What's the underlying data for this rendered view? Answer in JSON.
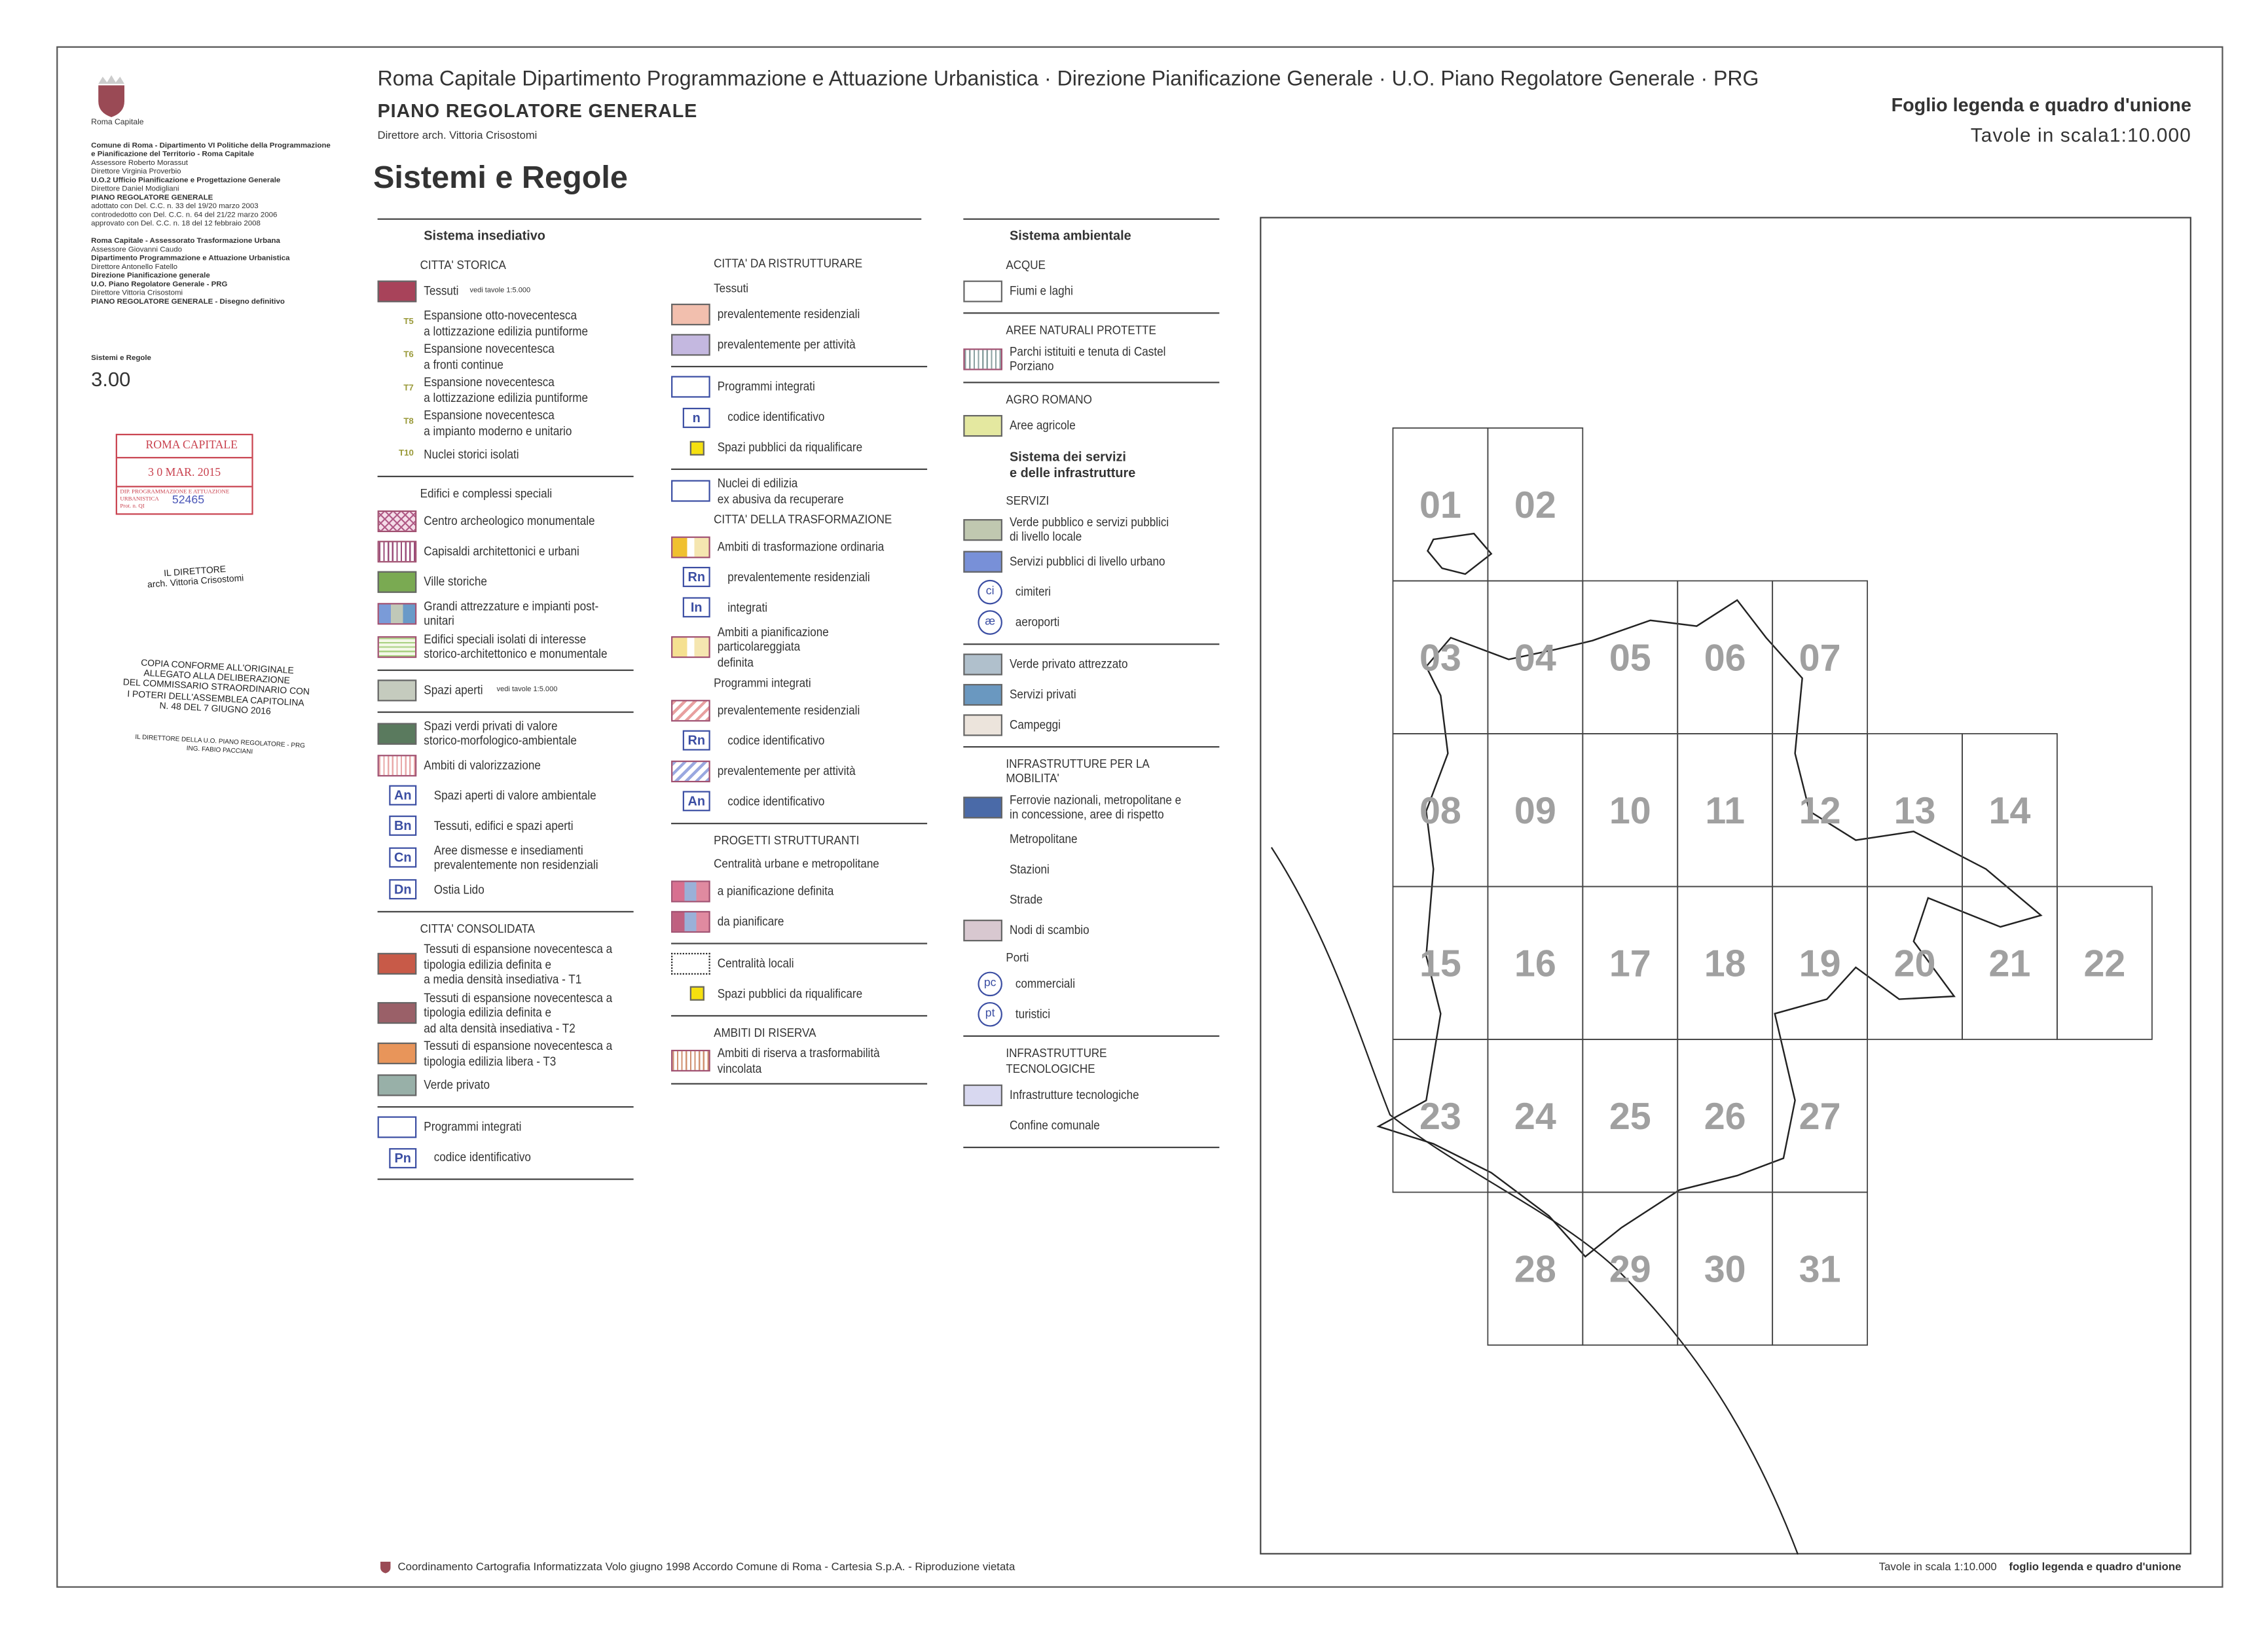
{
  "sidebar": {
    "logo_text": "SPQR",
    "org": "Roma Capitale",
    "lines": [
      {
        "b": true,
        "t": "Comune di Roma - Dipartimento VI Politiche della Programmazione"
      },
      {
        "b": true,
        "t": "e Pianificazione del Territorio - Roma Capitale"
      },
      {
        "b": false,
        "t": "Assessore Roberto Morassut"
      },
      {
        "b": false,
        "t": "Direttore Virginia Proverbio"
      },
      {
        "b": true,
        "t": "U.O.2 Ufficio Pianificazione e Progettazione Generale"
      },
      {
        "b": false,
        "t": "Direttore Daniel Modigliani"
      },
      {
        "b": true,
        "t": "PIANO REGOLATORE GENERALE"
      },
      {
        "b": false,
        "t": "adottato con Del. C.C. n. 33 del 19/20 marzo 2003"
      },
      {
        "b": false,
        "t": "controdedotto con Del. C.C. n. 64 del 21/22 marzo 2006"
      },
      {
        "b": false,
        "t": "approvato con Del. C.C. n. 18 del 12 febbraio 2008"
      },
      {
        "b": false,
        "t": ""
      },
      {
        "b": true,
        "t": "Roma Capitale - Assessorato Trasformazione Urbana"
      },
      {
        "b": false,
        "t": "Assessore  Giovanni Caudo"
      },
      {
        "b": true,
        "t": "Dipartimento Programmazione e Attuazione Urbanistica"
      },
      {
        "b": false,
        "t": "Direttore Antonello Fatello"
      },
      {
        "b": true,
        "t": "Direzione Pianificazione generale"
      },
      {
        "b": true,
        "t": "U.O. Piano Regolatore Generale - PRG"
      },
      {
        "b": false,
        "t": "Direttore Vittoria Crisostomi"
      },
      {
        "b": true,
        "t": "PIANO REGOLATORE GENERALE - Disegno definitivo"
      }
    ],
    "series_label": "Sistemi e Regole",
    "series_number": "3.00"
  },
  "stamp": {
    "title": "ROMA CAPITALE",
    "date": "3 0 MAR. 2015",
    "office": "DIP. PROGRAMMAZIONE E ATTUAZIONE URBANISTICA",
    "prot": "Prot. n. QI",
    "number": "52465"
  },
  "signature": {
    "role": "IL DIRETTORE",
    "name": "arch. Vittoria Crisostomi"
  },
  "copy_stamp": {
    "lines": [
      "COPIA CONFORME ALL'ORIGINALE",
      "ALLEGATO ALLA DELIBERAZIONE",
      "DEL COMMISSARIO STRAORDINARIO CON",
      "I POTERI DELL'ASSEMBLEA CAPITOLINA",
      "N. 48 DEL 7 GIUGNO 2016"
    ],
    "signer_role": "IL DIRETTORE DELLA U.O. PIANO REGOLATORE - PRG",
    "signer_name": "ING. FABIO PACCIANI"
  },
  "header": {
    "line1": "Roma Capitale  Dipartimento Programmazione e Attuazione Urbanistica · Direzione Pianificazione Generale · U.O. Piano Regolatore Generale · PRG",
    "line2": "PIANO REGOLATORE GENERALE",
    "line3": "Direttore arch. Vittoria Crisostomi",
    "title": "Sistemi e Regole",
    "sheet": "Foglio legenda e quadro d'unione",
    "scale": "Tavole in scala1:10.000"
  },
  "legend": {
    "col1": [
      {
        "k": "sec",
        "t": "Sistema insediativo"
      },
      {
        "k": "head",
        "t": "CITTA' STORICA"
      },
      {
        "k": "fill",
        "c": "#a8435a",
        "t": "Tessuti",
        "note": "vedi tavole  1:5.000"
      },
      {
        "k": "code",
        "code": "T5",
        "t": "Espansione otto-novecentesca\na lottizzazione edilizia puntiforme"
      },
      {
        "k": "code",
        "code": "T6",
        "t": "Espansione novecentesca\na fronti continue"
      },
      {
        "k": "code",
        "code": "T7",
        "t": "Espansione novecentesca\na lottizzazione edilizia puntiforme"
      },
      {
        "k": "code",
        "code": "T8",
        "t": "Espansione novecentesca\na impianto moderno e unitario"
      },
      {
        "k": "code",
        "code": "T10",
        "t": "Nuclei storici isolati"
      },
      {
        "k": "rule"
      },
      {
        "k": "head",
        "t": "Edifici e complessi speciali"
      },
      {
        "k": "pat",
        "p": "cross",
        "c": "#b05a86",
        "t": "Centro archeologico monumentale"
      },
      {
        "k": "pat",
        "p": "vert",
        "c": "#9a4d7a",
        "t": "Capisaldi architettonici e urbani"
      },
      {
        "k": "fill",
        "c": "#7aaa52",
        "t": "Ville storiche"
      },
      {
        "k": "pat",
        "p": "tri",
        "c": "#7a9bd8",
        "t": "Grandi attrezzature e impianti post-unitari"
      },
      {
        "k": "pat",
        "p": "horiz",
        "c": "#a8d080",
        "t": "Edifici speciali isolati di interesse\nstorico-architettonico e monumentale"
      },
      {
        "k": "rule"
      },
      {
        "k": "fill",
        "c": "#c5cbbe",
        "t": "Spazi aperti",
        "note": "vedi tavole  1:5.000"
      },
      {
        "k": "rule"
      },
      {
        "k": "fill",
        "c": "#5a7a5e",
        "t": "Spazi verdi privati di valore\nstorico-morfologico-ambientale"
      },
      {
        "k": "pat",
        "p": "vertlight",
        "c": "#e8a8a8",
        "t": "Ambiti di valorizzazione"
      },
      {
        "k": "badge",
        "code": "An",
        "t": "Spazi aperti di valore ambientale"
      },
      {
        "k": "badge",
        "code": "Bn",
        "t": "Tessuti, edifici e spazi aperti"
      },
      {
        "k": "badge",
        "code": "Cn",
        "t": "Aree dismesse e insediamenti\nprevalentemente non residenziali"
      },
      {
        "k": "badge",
        "code": "Dn",
        "t": "Ostia Lido"
      },
      {
        "k": "rule"
      },
      {
        "k": "head",
        "t": "CITTA' CONSOLIDATA"
      },
      {
        "k": "fill",
        "c": "#c85a48",
        "t": "Tessuti di espansione novecentesca a\ntipologia edilizia definita e\na media densità insediativa - T1"
      },
      {
        "k": "fill",
        "c": "#9a6068",
        "t": "Tessuti di espansione novecentesca a\ntipologia edilizia definita e\nad alta densità insediativa - T2"
      },
      {
        "k": "fill",
        "c": "#e8955a",
        "t": "Tessuti di espansione novecentesca a\ntipologia edilizia libera - T3"
      },
      {
        "k": "fill",
        "c": "#98b0a8",
        "t": "Verde privato"
      },
      {
        "k": "rule"
      },
      {
        "k": "outline",
        "c": "#3b4ea3",
        "t": "Programmi integrati"
      },
      {
        "k": "badge",
        "code": "Pn",
        "t": "codice identificativo"
      },
      {
        "k": "rule"
      }
    ],
    "col2": [
      {
        "k": "head",
        "t": "CITTA' DA RISTRUTTURARE"
      },
      {
        "k": "head",
        "t": "Tessuti"
      },
      {
        "k": "fill",
        "c": "#f2bfae",
        "t": "prevalentemente residenziali"
      },
      {
        "k": "fill",
        "c": "#c4b8e0",
        "t": "prevalentemente per attività"
      },
      {
        "k": "rule"
      },
      {
        "k": "outline",
        "c": "#3b4ea3",
        "t": "Programmi integrati"
      },
      {
        "k": "badge",
        "code": "n",
        "t": "codice identificativo"
      },
      {
        "k": "small",
        "c": "#f5e010",
        "t": "Spazi pubblici da riqualificare"
      },
      {
        "k": "rule"
      },
      {
        "k": "outline",
        "c": "#3b4ea3",
        "t": "Nuclei di edilizia\nex abusiva da recuperare"
      },
      {
        "k": "head",
        "t": "CITTA' DELLA TRASFORMAZIONE"
      },
      {
        "k": "pat",
        "p": "tri2",
        "c": "#f0c030",
        "t": "Ambiti di trasformazione ordinaria"
      },
      {
        "k": "badge",
        "code": "Rn",
        "t": "prevalentemente residenziali"
      },
      {
        "k": "badge",
        "code": "In",
        "t": "integrati"
      },
      {
        "k": "pat",
        "p": "tri2",
        "c": "#f5e090",
        "t": "Ambiti a pianificazione particolareggiata\ndefinita"
      },
      {
        "k": "head",
        "t": "Programmi integrati"
      },
      {
        "k": "pat",
        "p": "diag",
        "c": "#e8a0a0",
        "t": "prevalentemente residenziali"
      },
      {
        "k": "badge",
        "code": "Rn",
        "t": "codice identificativo"
      },
      {
        "k": "pat",
        "p": "diag",
        "c": "#9aa8e0",
        "t": "prevalentemente per attività"
      },
      {
        "k": "badge",
        "code": "An",
        "t": "codice identificativo"
      },
      {
        "k": "rule"
      },
      {
        "k": "head",
        "t": "PROGETTI STRUTTURANTI"
      },
      {
        "k": "head",
        "t": "Centralità urbane e metropolitane"
      },
      {
        "k": "pat",
        "p": "tri3",
        "c": "#d87090",
        "t": "a pianificazione definita"
      },
      {
        "k": "pat",
        "p": "tri3",
        "c": "#c06080",
        "t": "da pianificare"
      },
      {
        "k": "rule"
      },
      {
        "k": "dotted",
        "t": "Centralità locali"
      },
      {
        "k": "small",
        "c": "#f5e010",
        "t": "Spazi pubblici da riqualificare"
      },
      {
        "k": "rule"
      },
      {
        "k": "head",
        "t": "AMBITI DI RISERVA"
      },
      {
        "k": "pat",
        "p": "vertlight",
        "c": "#d09070",
        "t": "Ambiti di riserva a trasformabilità\nvincolata"
      },
      {
        "k": "rule"
      }
    ],
    "col3": [
      {
        "k": "sec",
        "t": "Sistema ambientale"
      },
      {
        "k": "head",
        "t": "ACQUE"
      },
      {
        "k": "fill",
        "c": "#ffffff",
        "t": "Fiumi e laghi"
      },
      {
        "k": "rule"
      },
      {
        "k": "head",
        "t": "AREE NATURALI PROTETTE"
      },
      {
        "k": "pat",
        "p": "vert",
        "c": "#8aa0a0",
        "t": "Parchi istituiti e tenuta di Castel Porziano"
      },
      {
        "k": "rule"
      },
      {
        "k": "head",
        "t": "AGRO ROMANO"
      },
      {
        "k": "fill",
        "c": "#e4e8a0",
        "t": "Aree agricole"
      },
      {
        "k": "sec",
        "t": "Sistema dei servizi\ne delle infrastrutture"
      },
      {
        "k": "head",
        "t": "SERVIZI"
      },
      {
        "k": "fill",
        "c": "#c0c8b0",
        "t": "Verde pubblico e servizi pubblici\ndi livello locale"
      },
      {
        "k": "fill",
        "c": "#7890d8",
        "t": "Servizi pubblici di livello urbano"
      },
      {
        "k": "circle",
        "code": "ci",
        "t": "cimiteri"
      },
      {
        "k": "circle",
        "code": "æ",
        "t": "aeroporti"
      },
      {
        "k": "rule"
      },
      {
        "k": "fill",
        "c": "#b0c0cc",
        "t": "Verde privato attrezzato"
      },
      {
        "k": "fill",
        "c": "#6a98c0",
        "t": "Servizi privati"
      },
      {
        "k": "fill",
        "c": "#ece4dc",
        "t": "Campeggi"
      },
      {
        "k": "rule"
      },
      {
        "k": "head",
        "t": "INFRASTRUTTURE PER LA MOBILITA'"
      },
      {
        "k": "fill",
        "c": "#4a6aa8",
        "t": "Ferrovie nazionali, metropolitane e\nin concessione, aree di rispetto"
      },
      {
        "k": "line",
        "s": "dashed",
        "t": "Metropolitane"
      },
      {
        "k": "line",
        "s": "station",
        "t": "Stazioni"
      },
      {
        "k": "line",
        "s": "double",
        "t": "Strade"
      },
      {
        "k": "fill",
        "c": "#d8c8d0",
        "t": "Nodi di scambio"
      },
      {
        "k": "head",
        "t": "Porti"
      },
      {
        "k": "circle",
        "code": "pc",
        "t": "commerciali"
      },
      {
        "k": "circle",
        "code": "pt",
        "t": "turistici"
      },
      {
        "k": "rule"
      },
      {
        "k": "head",
        "t": "INFRASTRUTTURE TECNOLOGICHE"
      },
      {
        "k": "fill",
        "c": "#d8d8f0",
        "t": "Infrastrutture tecnologiche"
      },
      {
        "k": "line",
        "s": "dotted",
        "t": "Confine comunale"
      },
      {
        "k": "rule"
      }
    ]
  },
  "map": {
    "tiles": [
      "01",
      "02",
      "03",
      "04",
      "05",
      "06",
      "07",
      "08",
      "09",
      "10",
      "11",
      "12",
      "13",
      "14",
      "15",
      "16",
      "17",
      "18",
      "19",
      "20",
      "21",
      "22",
      "23",
      "24",
      "25",
      "26",
      "27",
      "28",
      "29",
      "30",
      "31"
    ]
  },
  "footer": {
    "left": "Coordinamento Cartografia Informatizzata  Volo giugno 1998   Accordo Comune di Roma - Cartesia S.p.A. - Riproduzione vietata",
    "right_scale": "Tavole in scala 1:10.000",
    "right_sheet": "foglio legenda e quadro d'unione"
  }
}
